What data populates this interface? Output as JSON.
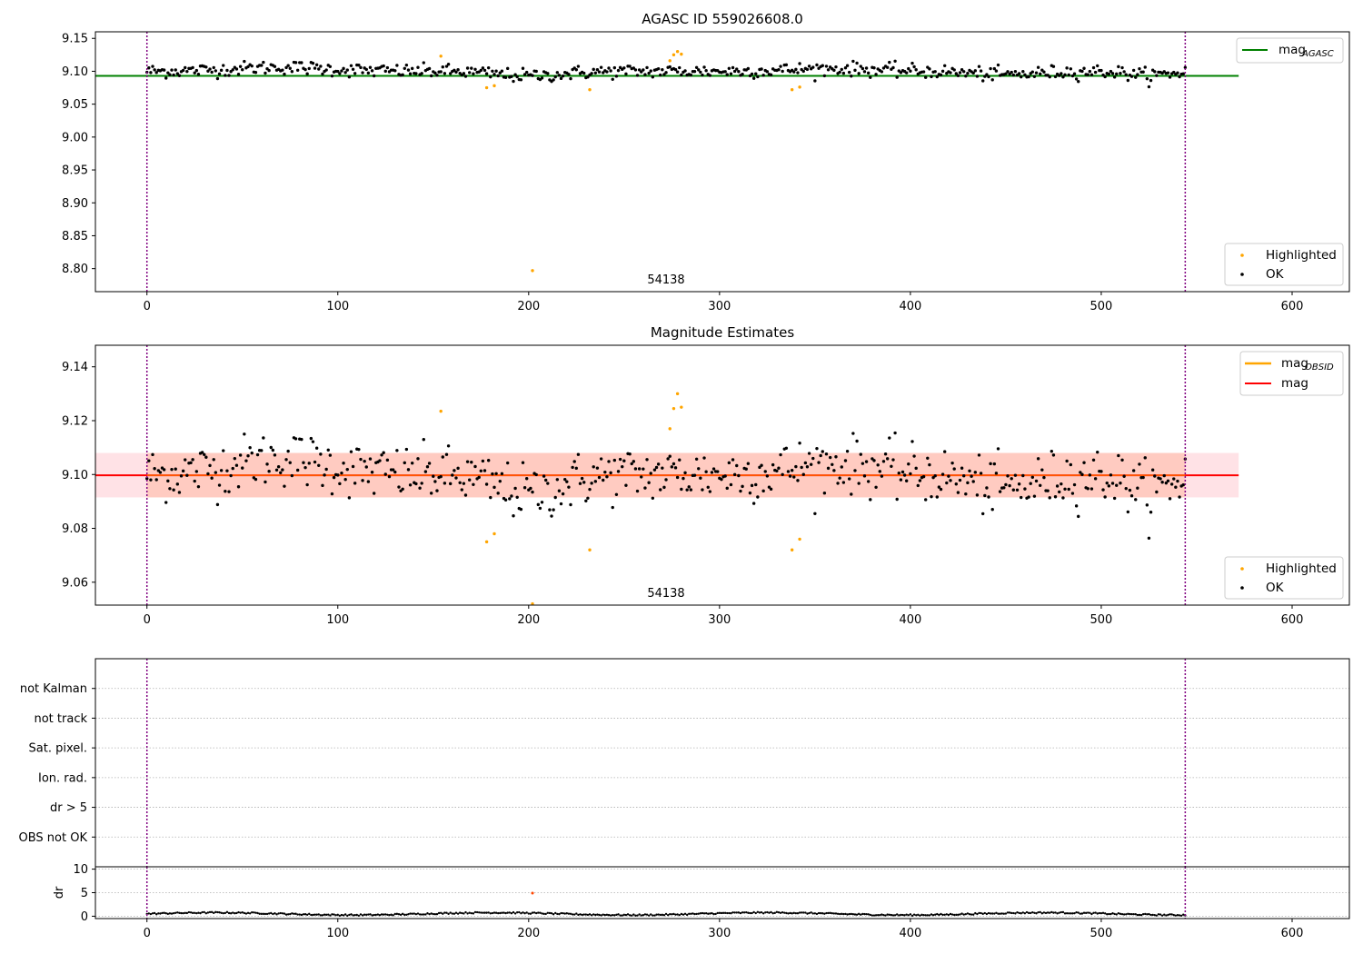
{
  "colors": {
    "ok": "#000000",
    "highlighted": "#ffa500",
    "mag_agasc": "#008000",
    "mag_obsid": "#ffa500",
    "mag": "#ff0000",
    "band_outer": "#ffb6c1",
    "band_inner": "#ffa07a",
    "obs_boundary": "#800080",
    "dr_highlight": "#ff4500"
  },
  "chart_data": [
    {
      "type": "scatter",
      "title": "AGASC ID 559026608.0",
      "xlim": [
        -27,
        630
      ],
      "ylim": [
        8.765,
        9.16
      ],
      "xticks": [
        "0",
        "100",
        "200",
        "300",
        "400",
        "500",
        "600"
      ],
      "yticks": [
        "8.80",
        "8.85",
        "8.90",
        "8.95",
        "9.00",
        "9.05",
        "9.10",
        "9.15"
      ],
      "obs_boundaries": [
        0,
        544
      ],
      "obsid_label": "54138",
      "obsid_label_x": 272,
      "mag_agasc": 9.093,
      "mag_agasc_x_range": [
        -27,
        572
      ],
      "legend_lines": [
        {
          "label": "mag",
          "subscript": "AGASC"
        }
      ],
      "legend_points": [
        {
          "label": "Highlighted"
        },
        {
          "label": "OK"
        }
      ],
      "highlighted_points": [
        [
          154,
          9.123
        ],
        [
          178,
          9.075
        ],
        [
          182,
          9.078
        ],
        [
          202,
          8.797
        ],
        [
          232,
          9.072
        ],
        [
          274,
          9.116
        ],
        [
          276,
          9.125
        ],
        [
          278,
          9.13
        ],
        [
          280,
          9.126
        ],
        [
          338,
          9.072
        ],
        [
          342,
          9.076
        ]
      ]
    },
    {
      "type": "scatter",
      "title": "Magnitude Estimates",
      "xlim": [
        -27,
        630
      ],
      "ylim": [
        9.0515,
        9.148
      ],
      "xticks": [
        "0",
        "100",
        "200",
        "300",
        "400",
        "500",
        "600"
      ],
      "yticks": [
        "9.06",
        "9.08",
        "9.10",
        "9.12",
        "9.14"
      ],
      "obs_boundaries": [
        0,
        544
      ],
      "obsid_label": "54138",
      "obsid_label_x": 272,
      "mag": 9.0997,
      "mag_x_range": [
        -27,
        572
      ],
      "mag_obsid": 9.0997,
      "mag_obsid_x_range": [
        0,
        544
      ],
      "band_outer": [
        9.0915,
        9.108
      ],
      "band_inner": [
        9.0915,
        9.108
      ],
      "legend_lines": [
        {
          "label": "mag",
          "subscript": "OBSID"
        },
        {
          "label": "mag",
          "subscript": ""
        }
      ],
      "legend_points": [
        {
          "label": "Highlighted"
        },
        {
          "label": "OK"
        }
      ],
      "highlighted_points": [
        [
          154,
          9.1235
        ],
        [
          178,
          9.075
        ],
        [
          182,
          9.078
        ],
        [
          202,
          9.052
        ],
        [
          232,
          9.072
        ],
        [
          274,
          9.117
        ],
        [
          276,
          9.1245
        ],
        [
          278,
          9.13
        ],
        [
          280,
          9.125
        ],
        [
          338,
          9.072
        ],
        [
          342,
          9.076
        ]
      ]
    },
    {
      "type": "scatter",
      "title": "",
      "xlim": [
        -27,
        630
      ],
      "ylim": [
        -0.5,
        6.5
      ],
      "categories": [
        "OBS not OK",
        "dr > 5",
        "Ion. rad.",
        "Sat. pixel.",
        "not track",
        "not Kalman"
      ],
      "obs_boundaries": [
        0,
        544
      ],
      "points": []
    },
    {
      "type": "scatter",
      "title": "",
      "xlim": [
        -27,
        630
      ],
      "ylim": [
        -0.5,
        10.5
      ],
      "ylabel": "dr",
      "xticks": [
        "0",
        "100",
        "200",
        "300",
        "400",
        "500",
        "600"
      ],
      "yticks": [
        "0",
        "5",
        "10"
      ],
      "obs_boundaries": [
        0,
        544
      ],
      "highlighted_points": [
        [
          202,
          4.9
        ]
      ]
    }
  ]
}
